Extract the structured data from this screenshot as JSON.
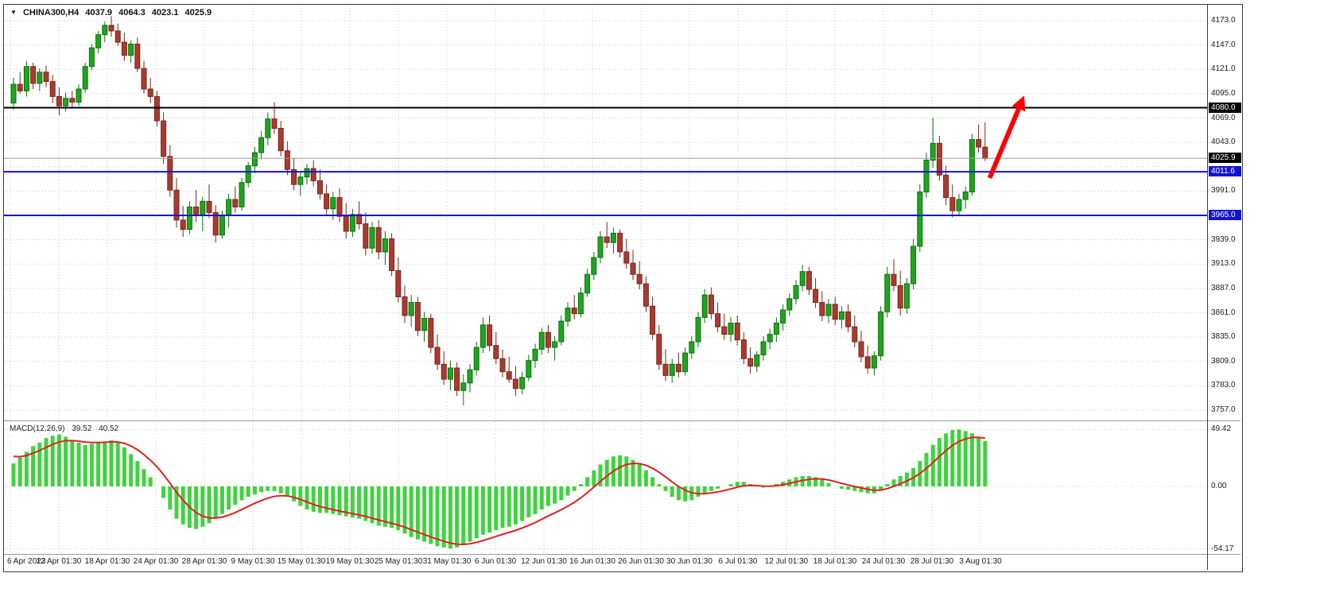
{
  "header": {
    "symbol": "CHINA300,H4",
    "open": "4037.9",
    "high": "4064.3",
    "low": "4023.1",
    "close": "4025.9"
  },
  "macd_label": {
    "name": "MACD(12,26,9)",
    "main": "39.52",
    "signal": "40.52"
  },
  "chart_data": {
    "type": "candlestick",
    "symbol": "CHINA300",
    "timeframe": "H4",
    "price_axis": {
      "min": 3757,
      "max": 4173,
      "grid_step": 26,
      "grid_values": [
        4173,
        4147,
        4121,
        4095,
        4069,
        4043,
        4017,
        3991,
        3965,
        3939,
        3913,
        3887,
        3861,
        3835,
        3809,
        3783,
        3757
      ],
      "ticks": [
        {
          "v": 4173,
          "t": "4173.0"
        },
        {
          "v": 4147,
          "t": "4147.0"
        },
        {
          "v": 4121,
          "t": "4121.0"
        },
        {
          "v": 4095,
          "t": "4095.0"
        },
        {
          "v": 4069,
          "t": "4069.0"
        },
        {
          "v": 4043,
          "t": "4043.0"
        },
        {
          "v": 3991,
          "t": "3991.0"
        },
        {
          "v": 3939,
          "t": "3939.0"
        },
        {
          "v": 3913,
          "t": "3913.0"
        },
        {
          "v": 3887,
          "t": "3887.0"
        },
        {
          "v": 3861,
          "t": "3861.0"
        },
        {
          "v": 3835,
          "t": "3835.0"
        },
        {
          "v": 3809,
          "t": "3809.0"
        },
        {
          "v": 3783,
          "t": "3783.0"
        },
        {
          "v": 3757,
          "t": "3757.0"
        }
      ]
    },
    "x_labels": [
      "6 Apr 2023",
      "12 Apr 01:30",
      "18 Apr 01:30",
      "24 Apr 01:30",
      "28 Apr 01:30",
      "9 May 01:30",
      "15 May 01:30",
      "19 May 01:30",
      "25 May 01:30",
      "31 May 01:30",
      "6 Jun 01:30",
      "12 Jun 01:30",
      "16 Jun 01:30",
      "26 Jun 01:30",
      "30 Jun 01:30",
      "6 Jul 01:30",
      "12 Jul 01:30",
      "18 Jul 01:30",
      "24 Jul 01:30",
      "28 Jul 01:30",
      "3 Aug 01:30"
    ],
    "levels": [
      {
        "id": "resistance-line",
        "price": 4080.0,
        "label": "4080.0",
        "color": "#000000",
        "tag_bg": "#000000",
        "width": 2
      },
      {
        "id": "bid-line",
        "price": 4025.9,
        "label": "4025.9",
        "color": "#9b9b9b",
        "tag_bg": "#000000",
        "width": 1
      },
      {
        "id": "support-upper-line",
        "price": 4011.6,
        "label": "4011.6",
        "color": "#1313cf",
        "tag_bg": "#1313cf",
        "width": 2
      },
      {
        "id": "support-lower-line",
        "price": 3965.0,
        "label": "3965.0",
        "color": "#1313cf",
        "tag_bg": "#1313cf",
        "width": 2
      }
    ],
    "candles": [
      [
        4085,
        4112,
        4078,
        4105
      ],
      [
        4105,
        4118,
        4095,
        4098
      ],
      [
        4098,
        4130,
        4092,
        4124
      ],
      [
        4124,
        4128,
        4100,
        4106
      ],
      [
        4106,
        4122,
        4098,
        4118
      ],
      [
        4118,
        4125,
        4102,
        4108
      ],
      [
        4108,
        4115,
        4085,
        4092
      ],
      [
        4092,
        4102,
        4072,
        4082
      ],
      [
        4082,
        4096,
        4076,
        4090
      ],
      [
        4090,
        4098,
        4080,
        4086
      ],
      [
        4086,
        4105,
        4082,
        4100
      ],
      [
        4100,
        4128,
        4096,
        4124
      ],
      [
        4124,
        4148,
        4120,
        4144
      ],
      [
        4144,
        4162,
        4138,
        4158
      ],
      [
        4158,
        4172,
        4150,
        4168
      ],
      [
        4168,
        4178,
        4156,
        4162
      ],
      [
        4162,
        4170,
        4146,
        4150
      ],
      [
        4150,
        4160,
        4130,
        4136
      ],
      [
        4136,
        4152,
        4128,
        4148
      ],
      [
        4148,
        4155,
        4118,
        4122
      ],
      [
        4122,
        4130,
        4095,
        4100
      ],
      [
        4100,
        4112,
        4085,
        4092
      ],
      [
        4092,
        4098,
        4060,
        4066
      ],
      [
        4066,
        4075,
        4020,
        4028
      ],
      [
        4028,
        4040,
        3985,
        3992
      ],
      [
        3992,
        4005,
        3952,
        3960
      ],
      [
        3960,
        3975,
        3942,
        3950
      ],
      [
        3950,
        3980,
        3945,
        3974
      ],
      [
        3974,
        3992,
        3958,
        3965
      ],
      [
        3965,
        3985,
        3948,
        3980
      ],
      [
        3980,
        3998,
        3962,
        3968
      ],
      [
        3968,
        3976,
        3936,
        3944
      ],
      [
        3944,
        3970,
        3940,
        3965
      ],
      [
        3965,
        3988,
        3952,
        3982
      ],
      [
        3982,
        3996,
        3968,
        3974
      ],
      [
        3974,
        4005,
        3970,
        4000
      ],
      [
        4000,
        4022,
        3995,
        4018
      ],
      [
        4018,
        4038,
        4010,
        4032
      ],
      [
        4032,
        4055,
        4025,
        4048
      ],
      [
        4048,
        4075,
        4040,
        4068
      ],
      [
        4068,
        4086,
        4052,
        4058
      ],
      [
        4058,
        4066,
        4028,
        4034
      ],
      [
        4034,
        4044,
        4008,
        4014
      ],
      [
        4014,
        4026,
        3992,
        3998
      ],
      [
        3998,
        4012,
        3986,
        4006
      ],
      [
        4006,
        4020,
        3998,
        4015
      ],
      [
        4015,
        4024,
        3996,
        4002
      ],
      [
        4002,
        4014,
        3982,
        3988
      ],
      [
        3988,
        3998,
        3966,
        3972
      ],
      [
        3972,
        3990,
        3960,
        3984
      ],
      [
        3984,
        3994,
        3958,
        3964
      ],
      [
        3964,
        3978,
        3940,
        3948
      ],
      [
        3948,
        3972,
        3942,
        3966
      ],
      [
        3966,
        3980,
        3950,
        3956
      ],
      [
        3956,
        3968,
        3922,
        3930
      ],
      [
        3930,
        3958,
        3924,
        3952
      ],
      [
        3952,
        3960,
        3918,
        3926
      ],
      [
        3926,
        3948,
        3912,
        3940
      ],
      [
        3940,
        3946,
        3900,
        3906
      ],
      [
        3906,
        3920,
        3872,
        3878
      ],
      [
        3878,
        3890,
        3850,
        3858
      ],
      [
        3858,
        3880,
        3846,
        3872
      ],
      [
        3872,
        3878,
        3836,
        3842
      ],
      [
        3842,
        3862,
        3830,
        3855
      ],
      [
        3855,
        3860,
        3818,
        3824
      ],
      [
        3824,
        3838,
        3800,
        3806
      ],
      [
        3806,
        3820,
        3784,
        3790
      ],
      [
        3790,
        3810,
        3778,
        3802
      ],
      [
        3802,
        3808,
        3772,
        3778
      ],
      [
        3778,
        3795,
        3762,
        3786
      ],
      [
        3786,
        3806,
        3776,
        3800
      ],
      [
        3800,
        3830,
        3794,
        3824
      ],
      [
        3824,
        3856,
        3818,
        3848
      ],
      [
        3848,
        3858,
        3820,
        3826
      ],
      [
        3826,
        3840,
        3806,
        3812
      ],
      [
        3812,
        3822,
        3792,
        3798
      ],
      [
        3798,
        3814,
        3786,
        3790
      ],
      [
        3790,
        3804,
        3772,
        3780
      ],
      [
        3780,
        3798,
        3774,
        3792
      ],
      [
        3792,
        3816,
        3788,
        3810
      ],
      [
        3810,
        3828,
        3802,
        3822
      ],
      [
        3822,
        3845,
        3816,
        3840
      ],
      [
        3840,
        3848,
        3818,
        3824
      ],
      [
        3824,
        3836,
        3810,
        3830
      ],
      [
        3830,
        3858,
        3826,
        3852
      ],
      [
        3852,
        3872,
        3846,
        3866
      ],
      [
        3866,
        3880,
        3854,
        3860
      ],
      [
        3860,
        3888,
        3856,
        3882
      ],
      [
        3882,
        3908,
        3878,
        3902
      ],
      [
        3902,
        3926,
        3896,
        3920
      ],
      [
        3920,
        3948,
        3914,
        3942
      ],
      [
        3942,
        3958,
        3930,
        3936
      ],
      [
        3936,
        3952,
        3924,
        3946
      ],
      [
        3946,
        3950,
        3920,
        3926
      ],
      [
        3926,
        3940,
        3908,
        3914
      ],
      [
        3914,
        3928,
        3896,
        3902
      ],
      [
        3902,
        3916,
        3886,
        3892
      ],
      [
        3892,
        3900,
        3862,
        3868
      ],
      [
        3868,
        3878,
        3832,
        3838
      ],
      [
        3838,
        3848,
        3800,
        3806
      ],
      [
        3806,
        3822,
        3788,
        3794
      ],
      [
        3794,
        3812,
        3786,
        3806
      ],
      [
        3806,
        3818,
        3792,
        3798
      ],
      [
        3798,
        3824,
        3794,
        3818
      ],
      [
        3818,
        3836,
        3812,
        3830
      ],
      [
        3830,
        3862,
        3824,
        3856
      ],
      [
        3856,
        3886,
        3850,
        3880
      ],
      [
        3880,
        3888,
        3854,
        3860
      ],
      [
        3860,
        3872,
        3840,
        3846
      ],
      [
        3846,
        3860,
        3832,
        3838
      ],
      [
        3838,
        3856,
        3830,
        3850
      ],
      [
        3850,
        3858,
        3826,
        3832
      ],
      [
        3832,
        3840,
        3806,
        3812
      ],
      [
        3812,
        3824,
        3796,
        3804
      ],
      [
        3804,
        3820,
        3798,
        3816
      ],
      [
        3816,
        3836,
        3810,
        3830
      ],
      [
        3830,
        3844,
        3822,
        3838
      ],
      [
        3838,
        3856,
        3830,
        3850
      ],
      [
        3850,
        3870,
        3842,
        3864
      ],
      [
        3864,
        3882,
        3858,
        3876
      ],
      [
        3876,
        3896,
        3870,
        3890
      ],
      [
        3890,
        3912,
        3884,
        3905
      ],
      [
        3905,
        3910,
        3880,
        3886
      ],
      [
        3886,
        3898,
        3866,
        3872
      ],
      [
        3872,
        3884,
        3852,
        3858
      ],
      [
        3858,
        3876,
        3850,
        3870
      ],
      [
        3870,
        3878,
        3848,
        3854
      ],
      [
        3854,
        3868,
        3844,
        3862
      ],
      [
        3862,
        3870,
        3840,
        3846
      ],
      [
        3846,
        3858,
        3824,
        3830
      ],
      [
        3830,
        3842,
        3808,
        3814
      ],
      [
        3814,
        3826,
        3796,
        3802
      ],
      [
        3802,
        3820,
        3794,
        3815
      ],
      [
        3815,
        3868,
        3810,
        3862
      ],
      [
        3862,
        3910,
        3856,
        3902
      ],
      [
        3902,
        3918,
        3884,
        3890
      ],
      [
        3890,
        3906,
        3858,
        3866
      ],
      [
        3866,
        3898,
        3860,
        3892
      ],
      [
        3892,
        3940,
        3886,
        3932
      ],
      [
        3932,
        3998,
        3926,
        3990
      ],
      [
        3990,
        4032,
        3984,
        4024
      ],
      [
        4024,
        4069,
        4016,
        4042
      ],
      [
        4042,
        4050,
        4002,
        4008
      ],
      [
        4008,
        4018,
        3976,
        3984
      ],
      [
        3984,
        3998,
        3963,
        3970
      ],
      [
        3970,
        3988,
        3964,
        3982
      ],
      [
        3982,
        3996,
        3972,
        3990
      ],
      [
        3990,
        4052,
        3986,
        4046
      ],
      [
        4046,
        4062,
        4032,
        4038
      ],
      [
        4037.9,
        4064.3,
        4023.1,
        4025.9
      ]
    ],
    "macd": {
      "params": "12,26,9",
      "main_last": 39.52,
      "signal_last": 40.52,
      "axis": {
        "max": 49.42,
        "min": -54.17,
        "ticks": [
          {
            "v": 49.42,
            "t": "49.42"
          },
          {
            "v": 0,
            "t": "0.00"
          },
          {
            "v": -54.17,
            "t": "-54.17"
          }
        ]
      },
      "histogram": [
        20,
        25,
        30,
        35,
        38,
        42,
        44,
        45,
        43,
        40,
        38,
        36,
        37,
        38,
        39,
        40,
        38,
        34,
        28,
        22,
        15,
        8,
        0,
        -10,
        -20,
        -28,
        -33,
        -36,
        -37,
        -35,
        -32,
        -28,
        -24,
        -20,
        -16,
        -12,
        -9,
        -7,
        -5,
        -4,
        -4,
        -6,
        -9,
        -13,
        -17,
        -20,
        -22,
        -23,
        -23,
        -24,
        -25,
        -26,
        -27,
        -28,
        -30,
        -32,
        -34,
        -35,
        -36,
        -38,
        -41,
        -44,
        -46,
        -48,
        -50,
        -52,
        -53,
        -54,
        -53,
        -51,
        -48,
        -45,
        -42,
        -40,
        -38,
        -36,
        -35,
        -33,
        -30,
        -27,
        -24,
        -20,
        -17,
        -15,
        -12,
        -8,
        -4,
        2,
        8,
        14,
        19,
        23,
        26,
        27,
        26,
        23,
        19,
        14,
        8,
        2,
        -4,
        -9,
        -12,
        -13,
        -12,
        -9,
        -6,
        -4,
        -2,
        0,
        2,
        4,
        4,
        2,
        0,
        -1,
        0,
        2,
        4,
        6,
        8,
        9,
        9,
        8,
        6,
        3,
        0,
        -2,
        -3,
        -4,
        -5,
        -6,
        -6,
        -3,
        2,
        6,
        9,
        12,
        16,
        22,
        29,
        36,
        42,
        46,
        49,
        49.4,
        48,
        46,
        43,
        39.52
      ],
      "signal_alpha": 0.25,
      "signal_start": 28
    },
    "annotations": [
      {
        "type": "arrow",
        "from_bar": 149.7,
        "from_price": 4005,
        "to_bar": 155,
        "to_price": 4093,
        "color": "#ff0000"
      }
    ],
    "colors": {
      "up": "#1fa51f",
      "up_stroke": "#0e6f0e",
      "down": "#ab3a2f",
      "down_stroke": "#77261d",
      "hist": "#3fd33f",
      "signal": "#e01f1f",
      "grid": "#c9c9c9"
    }
  }
}
